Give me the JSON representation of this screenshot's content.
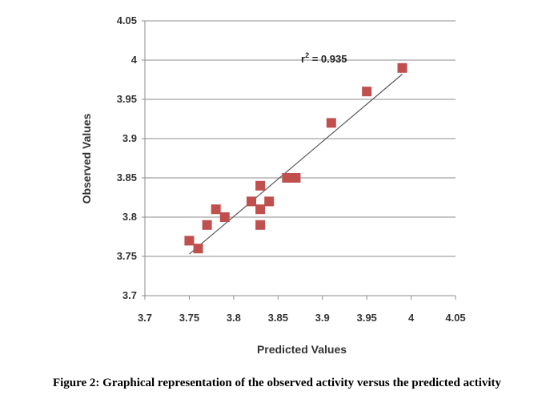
{
  "chart_data": {
    "type": "scatter",
    "xlabel": "Predicted Values",
    "ylabel": "Observed Values",
    "xlim": [
      3.7,
      4.05
    ],
    "ylim": [
      3.7,
      4.05
    ],
    "xticks": [
      "3.7",
      "3.75",
      "3.8",
      "3.85",
      "3.9",
      "3.95",
      "4",
      "4.05"
    ],
    "yticks": [
      "3.7",
      "3.75",
      "3.8",
      "3.85",
      "3.9",
      "3.95",
      "4",
      "4.05"
    ],
    "grid": "horizontal",
    "marker_color": "#C0504D",
    "line_color": "#555555",
    "points": [
      {
        "x": 3.75,
        "y": 3.77
      },
      {
        "x": 3.76,
        "y": 3.76
      },
      {
        "x": 3.77,
        "y": 3.79
      },
      {
        "x": 3.78,
        "y": 3.81
      },
      {
        "x": 3.79,
        "y": 3.8
      },
      {
        "x": 3.82,
        "y": 3.82
      },
      {
        "x": 3.83,
        "y": 3.84
      },
      {
        "x": 3.83,
        "y": 3.81
      },
      {
        "x": 3.83,
        "y": 3.79
      },
      {
        "x": 3.84,
        "y": 3.82
      },
      {
        "x": 3.86,
        "y": 3.85
      },
      {
        "x": 3.87,
        "y": 3.85
      },
      {
        "x": 3.91,
        "y": 3.92
      },
      {
        "x": 3.95,
        "y": 3.96
      },
      {
        "x": 3.99,
        "y": 3.99
      }
    ],
    "trendline": {
      "x": [
        3.75,
        3.99
      ],
      "y": [
        3.753,
        3.982
      ]
    },
    "annotation": {
      "base": "r",
      "sup": "2",
      "rest": " = 0.935"
    }
  },
  "caption": "Figure 2: Graphical representation of the observed activity versus the predicted activity"
}
